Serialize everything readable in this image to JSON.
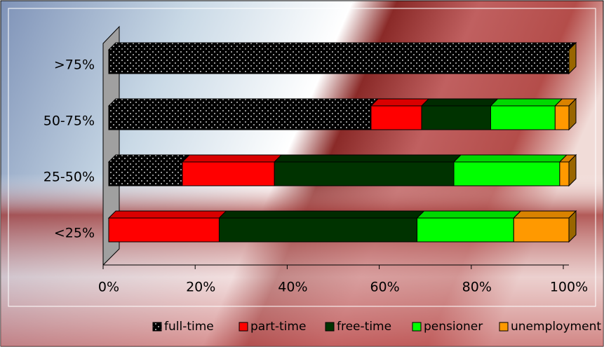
{
  "chart_data": {
    "type": "stacked-bar-horizontal",
    "categories": [
      "<25%",
      "25-50%",
      "50-75%",
      ">75%"
    ],
    "series": [
      {
        "name": "full-time",
        "color": "#000000",
        "pattern": "dots",
        "values": [
          0,
          16,
          57,
          100
        ]
      },
      {
        "name": "part-time",
        "color": "#ff0000",
        "values": [
          24,
          20,
          11,
          0
        ]
      },
      {
        "name": "free-time",
        "color": "#003300",
        "values": [
          43,
          39,
          15,
          0
        ]
      },
      {
        "name": "pensioner",
        "color": "#00ff00",
        "values": [
          21,
          23,
          14,
          0
        ]
      },
      {
        "name": "unemployment",
        "color": "#ff9900",
        "values": [
          12,
          2,
          3,
          0
        ]
      }
    ],
    "xlim": [
      0,
      100
    ],
    "xticks": [
      {
        "value": 0,
        "label": "0%"
      },
      {
        "value": 20,
        "label": "20%"
      },
      {
        "value": 40,
        "label": "40%"
      },
      {
        "value": 60,
        "label": "60%"
      },
      {
        "value": 80,
        "label": "80%"
      },
      {
        "value": 100,
        "label": "100%"
      }
    ],
    "legend": "bottom"
  }
}
